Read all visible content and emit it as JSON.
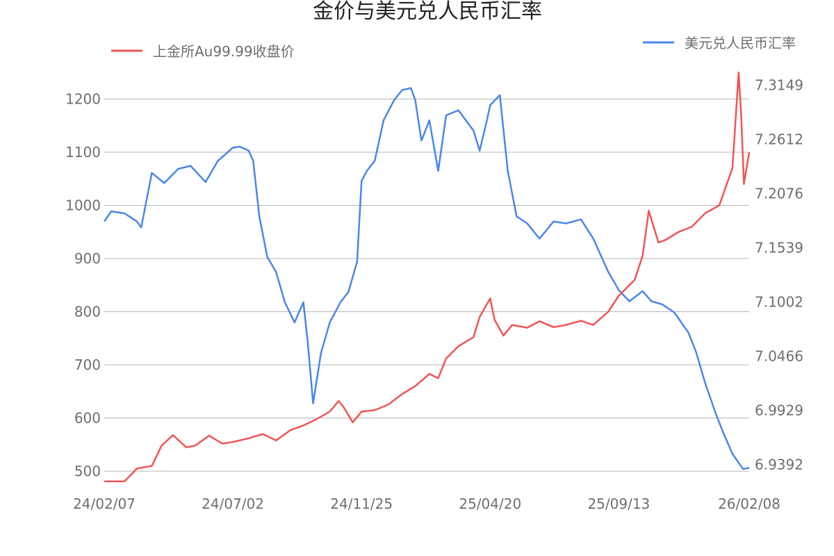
{
  "chart_data": {
    "type": "line",
    "title": "金价与美元兑人民币汇率",
    "x_tick_labels": [
      "24/02/07",
      "24/07/02",
      "24/11/25",
      "25/04/20",
      "25/09/13",
      "26/02/08"
    ],
    "x_range": [
      "24/02/07",
      "26/02/08"
    ],
    "y_left_ticks": [
      500,
      600,
      700,
      800,
      900,
      1000,
      1100,
      1200
    ],
    "y_left_range": [
      470,
      1262
    ],
    "y_right_ticks": [
      "6.9392",
      "6.9929",
      "7.0466",
      "7.1002",
      "7.1539",
      "7.2076",
      "7.2612",
      "7.3149"
    ],
    "y_right_range": [
      6.917,
      7.3338
    ],
    "grid": true,
    "legend_placement": "top",
    "series": [
      {
        "name": "上金所Au99.99收盘价",
        "axis": "left",
        "color": "#f05454",
        "x": [
          "24/02/07",
          "24/03/01",
          "24/03/15",
          "24/04/01",
          "24/04/12",
          "24/04/25",
          "24/05/10",
          "24/05/20",
          "24/06/05",
          "24/06/20",
          "24/07/02",
          "24/07/20",
          "24/08/05",
          "24/08/20",
          "24/09/05",
          "24/09/20",
          "24/10/05",
          "24/10/20",
          "24/10/30",
          "24/11/05",
          "24/11/15",
          "24/11/25",
          "24/12/10",
          "24/12/25",
          "25/01/10",
          "25/01/25",
          "25/02/10",
          "25/02/20",
          "25/03/01",
          "25/03/15",
          "25/04/01",
          "25/04/08",
          "25/04/20",
          "25/04/25",
          "25/05/05",
          "25/05/15",
          "25/06/01",
          "25/06/15",
          "25/07/01",
          "25/07/15",
          "25/08/01",
          "25/08/15",
          "25/09/01",
          "25/09/13",
          "25/10/01",
          "25/10/10",
          "25/10/17",
          "25/10/28",
          "25/11/05",
          "25/11/20",
          "25/12/05",
          "25/12/20",
          "26/01/05",
          "26/01/20",
          "26/01/27",
          "26/01/30",
          "26/02/02",
          "26/02/08"
        ],
        "values": [
          481,
          481,
          505,
          510,
          548,
          568,
          545,
          548,
          567,
          552,
          555,
          562,
          570,
          558,
          577,
          586,
          598,
          612,
          632,
          620,
          592,
          612,
          615,
          625,
          645,
          660,
          683,
          675,
          712,
          735,
          752,
          790,
          825,
          785,
          755,
          775,
          770,
          782,
          771,
          775,
          783,
          775,
          800,
          830,
          860,
          905,
          990,
          930,
          935,
          950,
          960,
          985,
          1000,
          1070,
          1250,
          1165,
          1040,
          1100
        ]
      },
      {
        "name": "美元兑人民币汇率",
        "axis": "right",
        "color": "#4a86e8",
        "x": [
          "24/02/07",
          "24/02/15",
          "24/03/01",
          "24/03/15",
          "24/03/20",
          "24/04/01",
          "24/04/15",
          "24/05/01",
          "24/05/15",
          "24/06/01",
          "24/06/15",
          "24/07/02",
          "24/07/10",
          "24/07/20",
          "24/07/25",
          "24/08/01",
          "24/08/10",
          "24/08/20",
          "24/08/30",
          "24/09/10",
          "24/09/20",
          "24/09/25",
          "24/10/01",
          "24/10/10",
          "24/10/20",
          "24/11/01",
          "24/11/10",
          "24/11/20",
          "24/11/25",
          "24/12/01",
          "24/12/10",
          "24/12/20",
          "25/01/01",
          "25/01/10",
          "25/01/20",
          "25/01/25",
          "25/02/01",
          "25/02/10",
          "25/02/20",
          "25/03/01",
          "25/03/15",
          "25/04/01",
          "25/04/08",
          "25/04/15",
          "25/04/20",
          "25/05/01",
          "25/05/10",
          "25/05/20",
          "25/06/01",
          "25/06/15",
          "25/07/01",
          "25/07/15",
          "25/08/01",
          "25/08/15",
          "25/09/01",
          "25/09/13",
          "25/09/25",
          "25/10/10",
          "25/10/20",
          "25/11/01",
          "25/11/15",
          "25/12/01",
          "25/12/10",
          "25/12/20",
          "26/01/01",
          "26/01/10",
          "26/01/20",
          "26/02/01",
          "26/02/08"
        ],
        "values": [
          7.18,
          7.19,
          7.188,
          7.18,
          7.174,
          7.228,
          7.218,
          7.232,
          7.235,
          7.219,
          7.24,
          7.253,
          7.254,
          7.25,
          7.24,
          7.185,
          7.145,
          7.13,
          7.1,
          7.08,
          7.1,
          7.06,
          7.0,
          7.05,
          7.08,
          7.1,
          7.11,
          7.14,
          7.22,
          7.23,
          7.24,
          7.28,
          7.3,
          7.31,
          7.312,
          7.3,
          7.26,
          7.28,
          7.23,
          7.285,
          7.29,
          7.27,
          7.25,
          7.275,
          7.295,
          7.305,
          7.23,
          7.185,
          7.178,
          7.163,
          7.18,
          7.178,
          7.182,
          7.163,
          7.13,
          7.112,
          7.101,
          7.111,
          7.101,
          7.098,
          7.09,
          7.07,
          7.05,
          7.02,
          6.99,
          6.97,
          6.95,
          6.935,
          6.936
        ]
      }
    ]
  }
}
